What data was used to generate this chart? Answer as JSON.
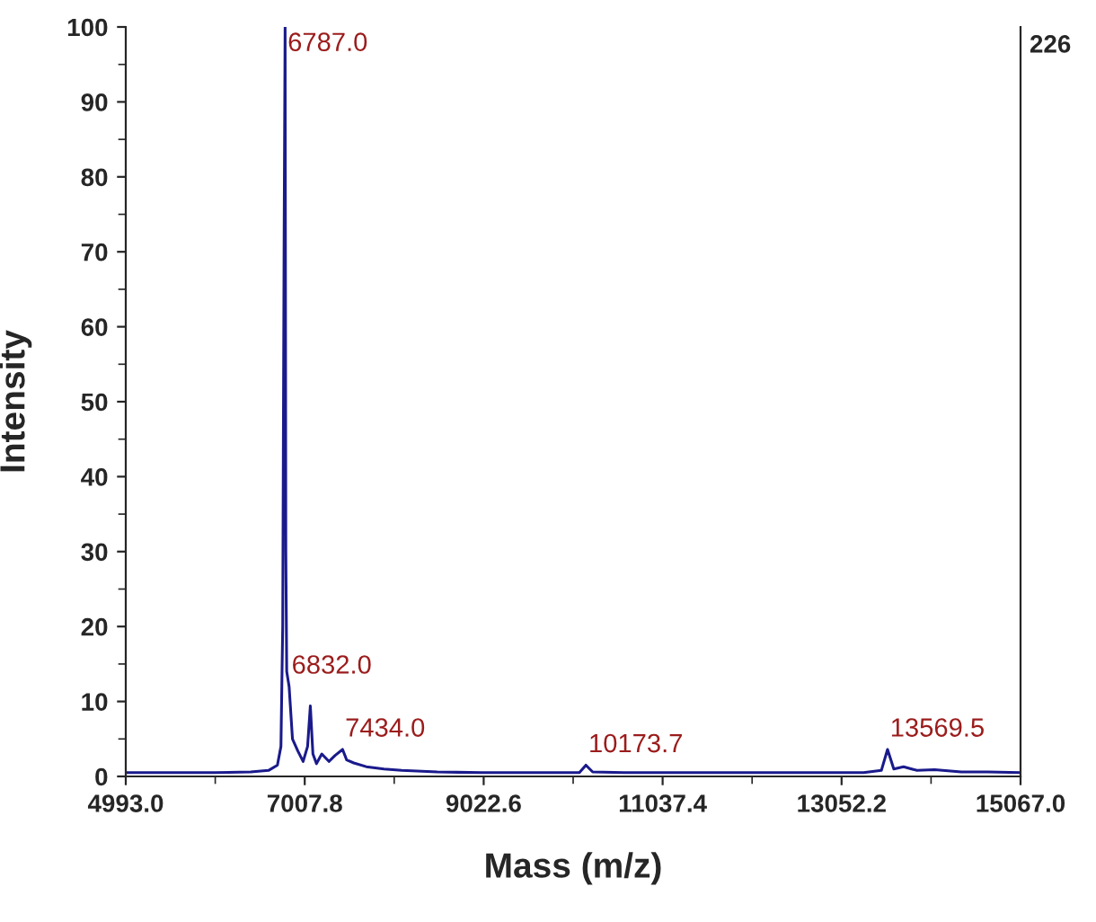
{
  "chart_data": {
    "type": "line",
    "xlabel": "Mass (m/z)",
    "ylabel": "Intensity",
    "series": [
      {
        "color": "#1a1a8c",
        "x": [
          4993,
          5500,
          6000,
          6400,
          6600,
          6700,
          6740,
          6760,
          6775,
          6787,
          6795,
          6805,
          6832,
          6870,
          6930,
          6990,
          7040,
          7071,
          7100,
          7140,
          7200,
          7280,
          7350,
          7434,
          7480,
          7560,
          7700,
          7900,
          8100,
          8500,
          9000,
          9500,
          10100,
          10173.7,
          10250,
          10600,
          11500,
          12500,
          13300,
          13500,
          13569.5,
          13640,
          13750,
          13900,
          14100,
          14400,
          14700,
          15067
        ],
        "values": [
          0.5,
          0.5,
          0.5,
          0.6,
          0.8,
          1.5,
          4,
          20,
          70,
          100,
          30,
          14,
          12,
          5,
          3.4,
          2,
          4,
          9.4,
          3,
          1.7,
          3,
          2,
          2.8,
          3.6,
          2.2,
          1.8,
          1.3,
          1,
          0.8,
          0.6,
          0.5,
          0.5,
          0.5,
          1.5,
          0.6,
          0.5,
          0.5,
          0.5,
          0.5,
          0.8,
          3.6,
          1,
          1.3,
          0.8,
          0.9,
          0.6,
          0.6,
          0.5
        ]
      }
    ],
    "xlim": [
      4993.0,
      15067.0
    ],
    "xticks": [
      {
        "value": 4993.0,
        "label": "4993.0"
      },
      {
        "value": 7007.8,
        "label": "7007.8"
      },
      {
        "value": 9022.6,
        "label": "9022.6"
      },
      {
        "value": 11037.4,
        "label": "11037.4"
      },
      {
        "value": 13052.2,
        "label": "13052.2"
      },
      {
        "value": 15067.0,
        "label": "15067.0"
      }
    ],
    "ylim": [
      0,
      100
    ],
    "yticks": [
      0,
      10,
      20,
      30,
      40,
      50,
      60,
      70,
      80,
      90,
      100
    ],
    "annotations": [
      "226",
      {
        "text": "6787.0",
        "x": 6787,
        "y": 100
      },
      {
        "text": "6832.0",
        "x": 6832,
        "y": 12
      },
      {
        "text": "7434.0",
        "x": 7434,
        "y": 3.6
      },
      {
        "text": "10173.7",
        "x": 10173.7,
        "y": 1.5
      },
      {
        "text": "13569.5",
        "x": 13569.5,
        "y": 3.6
      }
    ],
    "marker": "none",
    "line_style": "solid"
  }
}
